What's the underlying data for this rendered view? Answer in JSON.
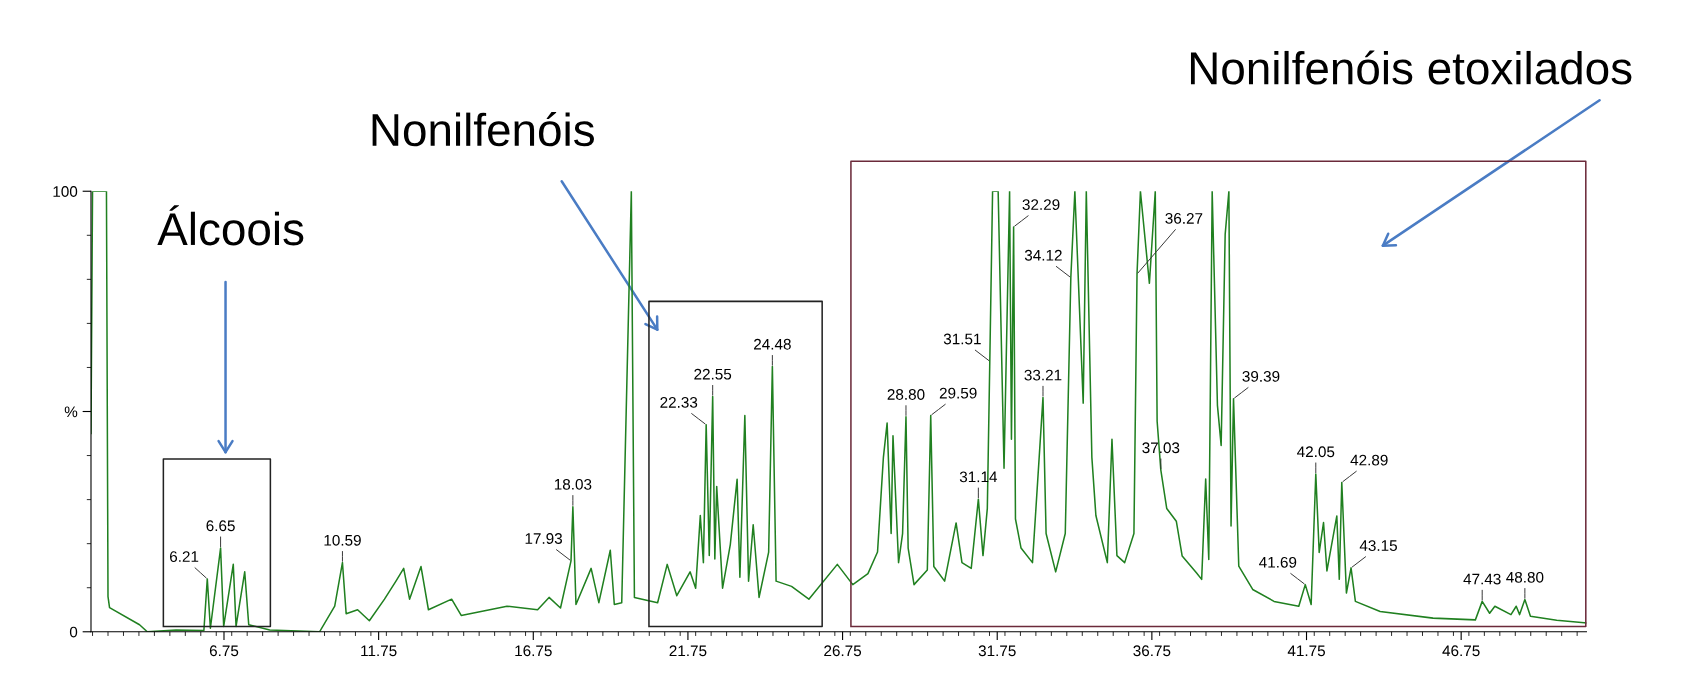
{
  "chart_data": {
    "type": "line",
    "x": [
      2.45,
      2.5,
      2.95,
      3.0,
      3.05,
      4.02,
      4.27,
      5.2,
      6.1,
      6.21,
      6.31,
      6.64,
      6.74,
      7.05,
      7.14,
      7.42,
      7.55,
      8.23,
      9.84,
      10.33,
      10.58,
      10.7,
      11.07,
      11.45,
      11.94,
      12.31,
      12.56,
      12.75,
      13.12,
      13.36,
      14.11,
      14.42,
      15.9,
      16.89,
      17.26,
      17.63,
      17.97,
      18.03,
      18.13,
      18.62,
      18.87,
      19.24,
      19.37,
      19.61,
      19.92,
      20.02,
      20.77,
      21.08,
      21.39,
      21.82,
      22.0,
      22.15,
      22.25,
      22.34,
      22.44,
      22.55,
      22.62,
      22.68,
      22.87,
      23.12,
      23.34,
      23.43,
      23.59,
      23.71,
      23.86,
      24.05,
      24.36,
      24.48,
      24.6,
      25.1,
      25.66,
      26.58,
      27.08,
      27.57,
      27.88,
      28.07,
      28.19,
      28.32,
      28.38,
      28.56,
      28.69,
      28.8,
      28.87,
      29.06,
      29.49,
      29.6,
      29.7,
      30.05,
      30.42,
      30.61,
      30.91,
      31.14,
      31.29,
      31.43,
      31.51,
      31.6,
      31.78,
      31.97,
      32.15,
      32.21,
      32.28,
      32.34,
      32.52,
      32.89,
      33.23,
      33.33,
      33.64,
      33.95,
      34.13,
      34.26,
      34.53,
      34.63,
      34.81,
      34.94,
      35.31,
      35.46,
      35.62,
      35.87,
      36.17,
      36.27,
      36.38,
      36.67,
      36.86,
      36.92,
      37.04,
      37.23,
      37.54,
      37.73,
      38.19,
      38.36,
      38.49,
      38.59,
      38.7,
      38.87,
      38.99,
      39.12,
      39.24,
      39.31,
      39.39,
      39.56,
      40.01,
      40.7,
      41.5,
      41.71,
      41.9,
      42.05,
      42.16,
      42.3,
      42.41,
      42.73,
      42.81,
      42.89,
      43.04,
      43.19,
      43.33,
      44.13,
      45.84,
      47.21,
      47.43,
      47.67,
      47.84,
      48.36,
      48.53,
      48.64,
      48.81,
      48.99,
      49.84,
      50.8
    ],
    "series": [
      {
        "color": "#208020",
        "values": [
          45,
          100,
          100,
          8,
          5.5,
          1.6,
          0,
          0.4,
          0.3,
          12,
          0.8,
          19,
          1.2,
          15.3,
          1.2,
          13.6,
          1.6,
          0.4,
          0,
          5.8,
          15.7,
          4.1,
          5,
          2.5,
          7.4,
          11.5,
          14.4,
          7.4,
          14.8,
          5,
          7.4,
          3.7,
          5.8,
          5,
          7.8,
          5.4,
          16.1,
          28.4,
          6.2,
          14.4,
          6.6,
          18.5,
          6.2,
          6.6,
          100,
          7.8,
          6.6,
          15.3,
          8.2,
          13.6,
          9.9,
          26.4,
          15.7,
          47,
          17.3,
          53.4,
          16.5,
          33,
          9.9,
          19.8,
          34.6,
          12.4,
          49.1,
          11.5,
          24.3,
          7.8,
          18.1,
          60.2,
          11.5,
          10.3,
          7.4,
          15.3,
          10.7,
          13.2,
          18.1,
          39.6,
          47.4,
          22.3,
          44.5,
          15.7,
          22.3,
          48.8,
          19,
          10.7,
          14,
          49.1,
          14.8,
          11.5,
          24.7,
          15.7,
          14.4,
          30.1,
          17.3,
          28,
          61.4,
          100,
          100,
          37.1,
          100,
          43.7,
          91.9,
          25.6,
          19,
          15.7,
          53.2,
          22.3,
          13.6,
          22.3,
          80.4,
          100,
          51.9,
          100,
          39.6,
          26.4,
          15.7,
          43.7,
          17.3,
          15.7,
          22.3,
          81.2,
          100,
          79.1,
          100,
          47.8,
          36.7,
          28,
          25.1,
          17.2,
          13.4,
          11.9,
          34.7,
          16.4,
          100,
          51.4,
          42.3,
          90.2,
          100,
          24,
          52.9,
          14.9,
          9.6,
          6.9,
          5.8,
          10.7,
          6.2,
          35.8,
          18,
          24.8,
          13.8,
          26.3,
          11.9,
          33.9,
          8.8,
          14.5,
          6.9,
          4.6,
          3.1,
          2.7,
          6.9,
          4.2,
          5.8,
          3.9,
          5.8,
          3.9,
          7.3,
          3.5,
          2.6,
          2
        ]
      }
    ],
    "xlim": [
      2.45,
      50.8
    ],
    "xticks": [
      6.75,
      11.75,
      16.75,
      21.75,
      26.75,
      31.75,
      36.75,
      41.75,
      46.75
    ],
    "ylim": [
      0,
      100
    ],
    "yticks": [
      0,
      {
        "value": 50,
        "label": "%"
      },
      100
    ],
    "grid": false,
    "legend": false,
    "marker": "none",
    "line_style": "solid",
    "annotations": [
      "Álcoois",
      "Nonilfenóis",
      "Nonilfenóis etoxilados",
      {
        "text": "6.21",
        "x": 6.21,
        "y": 12
      },
      {
        "text": "6.65",
        "x": 6.64,
        "y": 19
      },
      {
        "text": "10.59",
        "x": 10.58,
        "y": 15.7
      },
      {
        "text": "17.93",
        "x": 17.97,
        "y": 16.1
      },
      {
        "text": "18.03",
        "x": 18.03,
        "y": 28.4
      },
      {
        "text": "22.33",
        "x": 22.34,
        "y": 47
      },
      {
        "text": "22.55",
        "x": 22.55,
        "y": 53.4
      },
      {
        "text": "24.48",
        "x": 24.48,
        "y": 60.2
      },
      {
        "text": "28.80",
        "x": 28.8,
        "y": 48.8
      },
      {
        "text": "29.59",
        "x": 29.6,
        "y": 49.1
      },
      {
        "text": "31.14",
        "x": 31.14,
        "y": 30.1
      },
      {
        "text": "31.51",
        "x": 31.51,
        "y": 61.4
      },
      {
        "text": "32.29",
        "x": 32.28,
        "y": 91.9
      },
      {
        "text": "33.21",
        "x": 33.23,
        "y": 53.2
      },
      {
        "text": "34.12",
        "x": 34.13,
        "y": 80.4
      },
      {
        "text": "36.27",
        "x": 36.27,
        "y": 81.2
      },
      {
        "text": "37.03",
        "x": 37.04,
        "y": 36.7
      },
      {
        "text": "39.39",
        "x": 39.39,
        "y": 52.9
      },
      {
        "text": "41.69",
        "x": 41.71,
        "y": 10.7
      },
      {
        "text": "42.05",
        "x": 42.05,
        "y": 35.8
      },
      {
        "text": "42.89",
        "x": 42.89,
        "y": 33.9
      },
      {
        "text": "43.15",
        "x": 43.19,
        "y": 14.5
      },
      {
        "text": "47.43",
        "x": 47.43,
        "y": 6.9
      },
      {
        "text": "48.80",
        "x": 48.81,
        "y": 7.3
      }
    ]
  }
}
